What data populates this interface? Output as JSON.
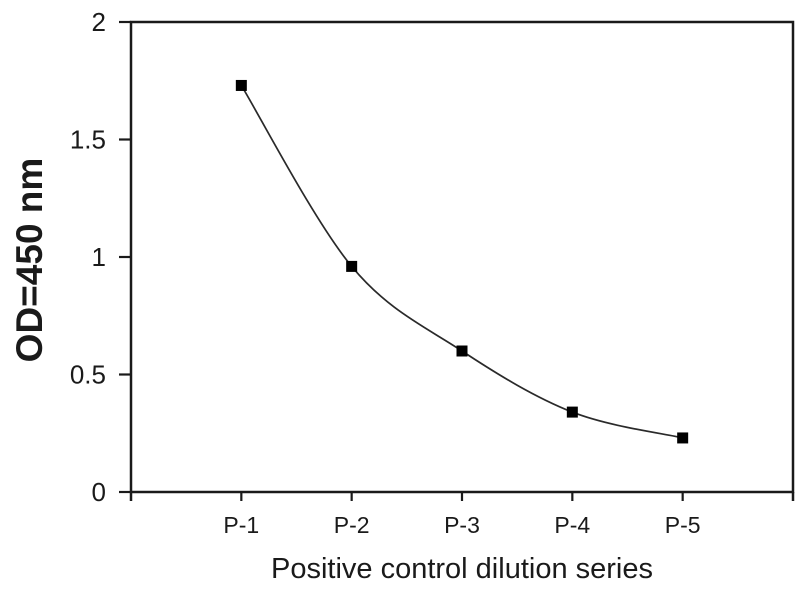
{
  "chart_data": {
    "type": "line",
    "categories": [
      "P-1",
      "P-2",
      "P-3",
      "P-4",
      "P-5"
    ],
    "values": [
      1.73,
      0.96,
      0.6,
      0.34,
      0.23
    ],
    "xlabel": "Positive control dilution series",
    "ylabel": "OD=450 nm",
    "ylim": [
      0,
      2
    ],
    "yticks": [
      0,
      0.5,
      1,
      1.5,
      2
    ],
    "ytick_labels": [
      "0",
      "0.5",
      "1",
      "1.5",
      "2"
    ],
    "grid": false,
    "legend": "none",
    "marker": "filled-square",
    "line_style": "smooth",
    "line_color": "#2a2a2a",
    "marker_color": "#000000",
    "axis_color": "#1a1a1a",
    "text_color": "#1a1a1a",
    "background": "#ffffff"
  }
}
